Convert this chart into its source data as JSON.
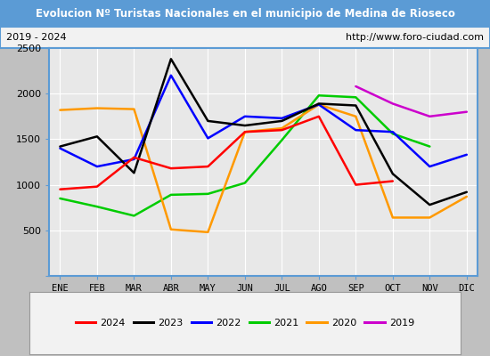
{
  "title": "Evolucion Nº Turistas Nacionales en el municipio de Medina de Rioseco",
  "subtitle_left": "2019 - 2024",
  "subtitle_right": "http://www.foro-ciudad.com",
  "months": [
    "ENE",
    "FEB",
    "MAR",
    "ABR",
    "MAY",
    "JUN",
    "JUL",
    "AGO",
    "SEP",
    "OCT",
    "NOV",
    "DIC"
  ],
  "series": {
    "2024": [
      950,
      980,
      1300,
      1180,
      1200,
      1580,
      1600,
      1750,
      1000,
      1040,
      null,
      null
    ],
    "2023": [
      1420,
      1530,
      1130,
      2380,
      1700,
      1650,
      1700,
      1890,
      1870,
      1120,
      780,
      920
    ],
    "2022": [
      1400,
      1200,
      1280,
      2200,
      1510,
      1750,
      1730,
      1880,
      1600,
      1580,
      1200,
      1330
    ],
    "2021": [
      850,
      760,
      660,
      890,
      900,
      1020,
      1490,
      1980,
      1960,
      1560,
      1420,
      null
    ],
    "2020": [
      1820,
      1840,
      1830,
      510,
      480,
      1580,
      1620,
      1880,
      1750,
      640,
      640,
      870
    ],
    "2019": [
      null,
      null,
      null,
      null,
      null,
      null,
      null,
      null,
      2080,
      1890,
      1750,
      1800
    ]
  },
  "colors": {
    "2024": "#ff0000",
    "2023": "#000000",
    "2022": "#0000ff",
    "2021": "#00cc00",
    "2020": "#ff9900",
    "2019": "#cc00cc"
  },
  "ylim": [
    0,
    2500
  ],
  "yticks": [
    0,
    500,
    1000,
    1500,
    2000,
    2500
  ],
  "title_bg": "#5b9bd5",
  "title_fg": "#ffffff",
  "subtitle_bg": "#f2f2f2",
  "plot_bg": "#e8e8e8",
  "outer_bg": "#c0c0c0",
  "grid_color": "#ffffff",
  "legend_bg": "#f2f2f2",
  "border_color": "#5b9bd5"
}
